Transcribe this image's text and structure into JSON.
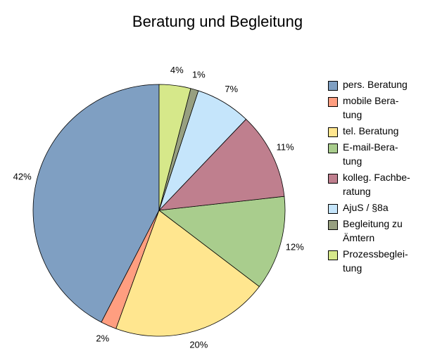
{
  "chart_data": {
    "type": "pie",
    "title": "Beratung und Begleitung",
    "categories": [
      "pers. Beratung",
      "mobile Bera-\ntung",
      "tel. Beratung",
      "E-mail-Bera-\ntung",
      "kolleg. Fachbe-\nratung",
      "AjuS / §8a",
      "Begleitung zu\nÄmtern",
      "Prozessbeglei-\ntung"
    ],
    "values": [
      42,
      2,
      20,
      12,
      11,
      7,
      1,
      4
    ],
    "value_labels": [
      "42%",
      "2%",
      "20%",
      "12%",
      "11%",
      "7%",
      "1%",
      "4%"
    ],
    "colors": [
      "#7f9fc2",
      "#ff9e80",
      "#ffe68f",
      "#a9cd8d",
      "#bf7f8e",
      "#c5e5fb",
      "#979f80",
      "#d6e88a"
    ],
    "legend": "right"
  }
}
